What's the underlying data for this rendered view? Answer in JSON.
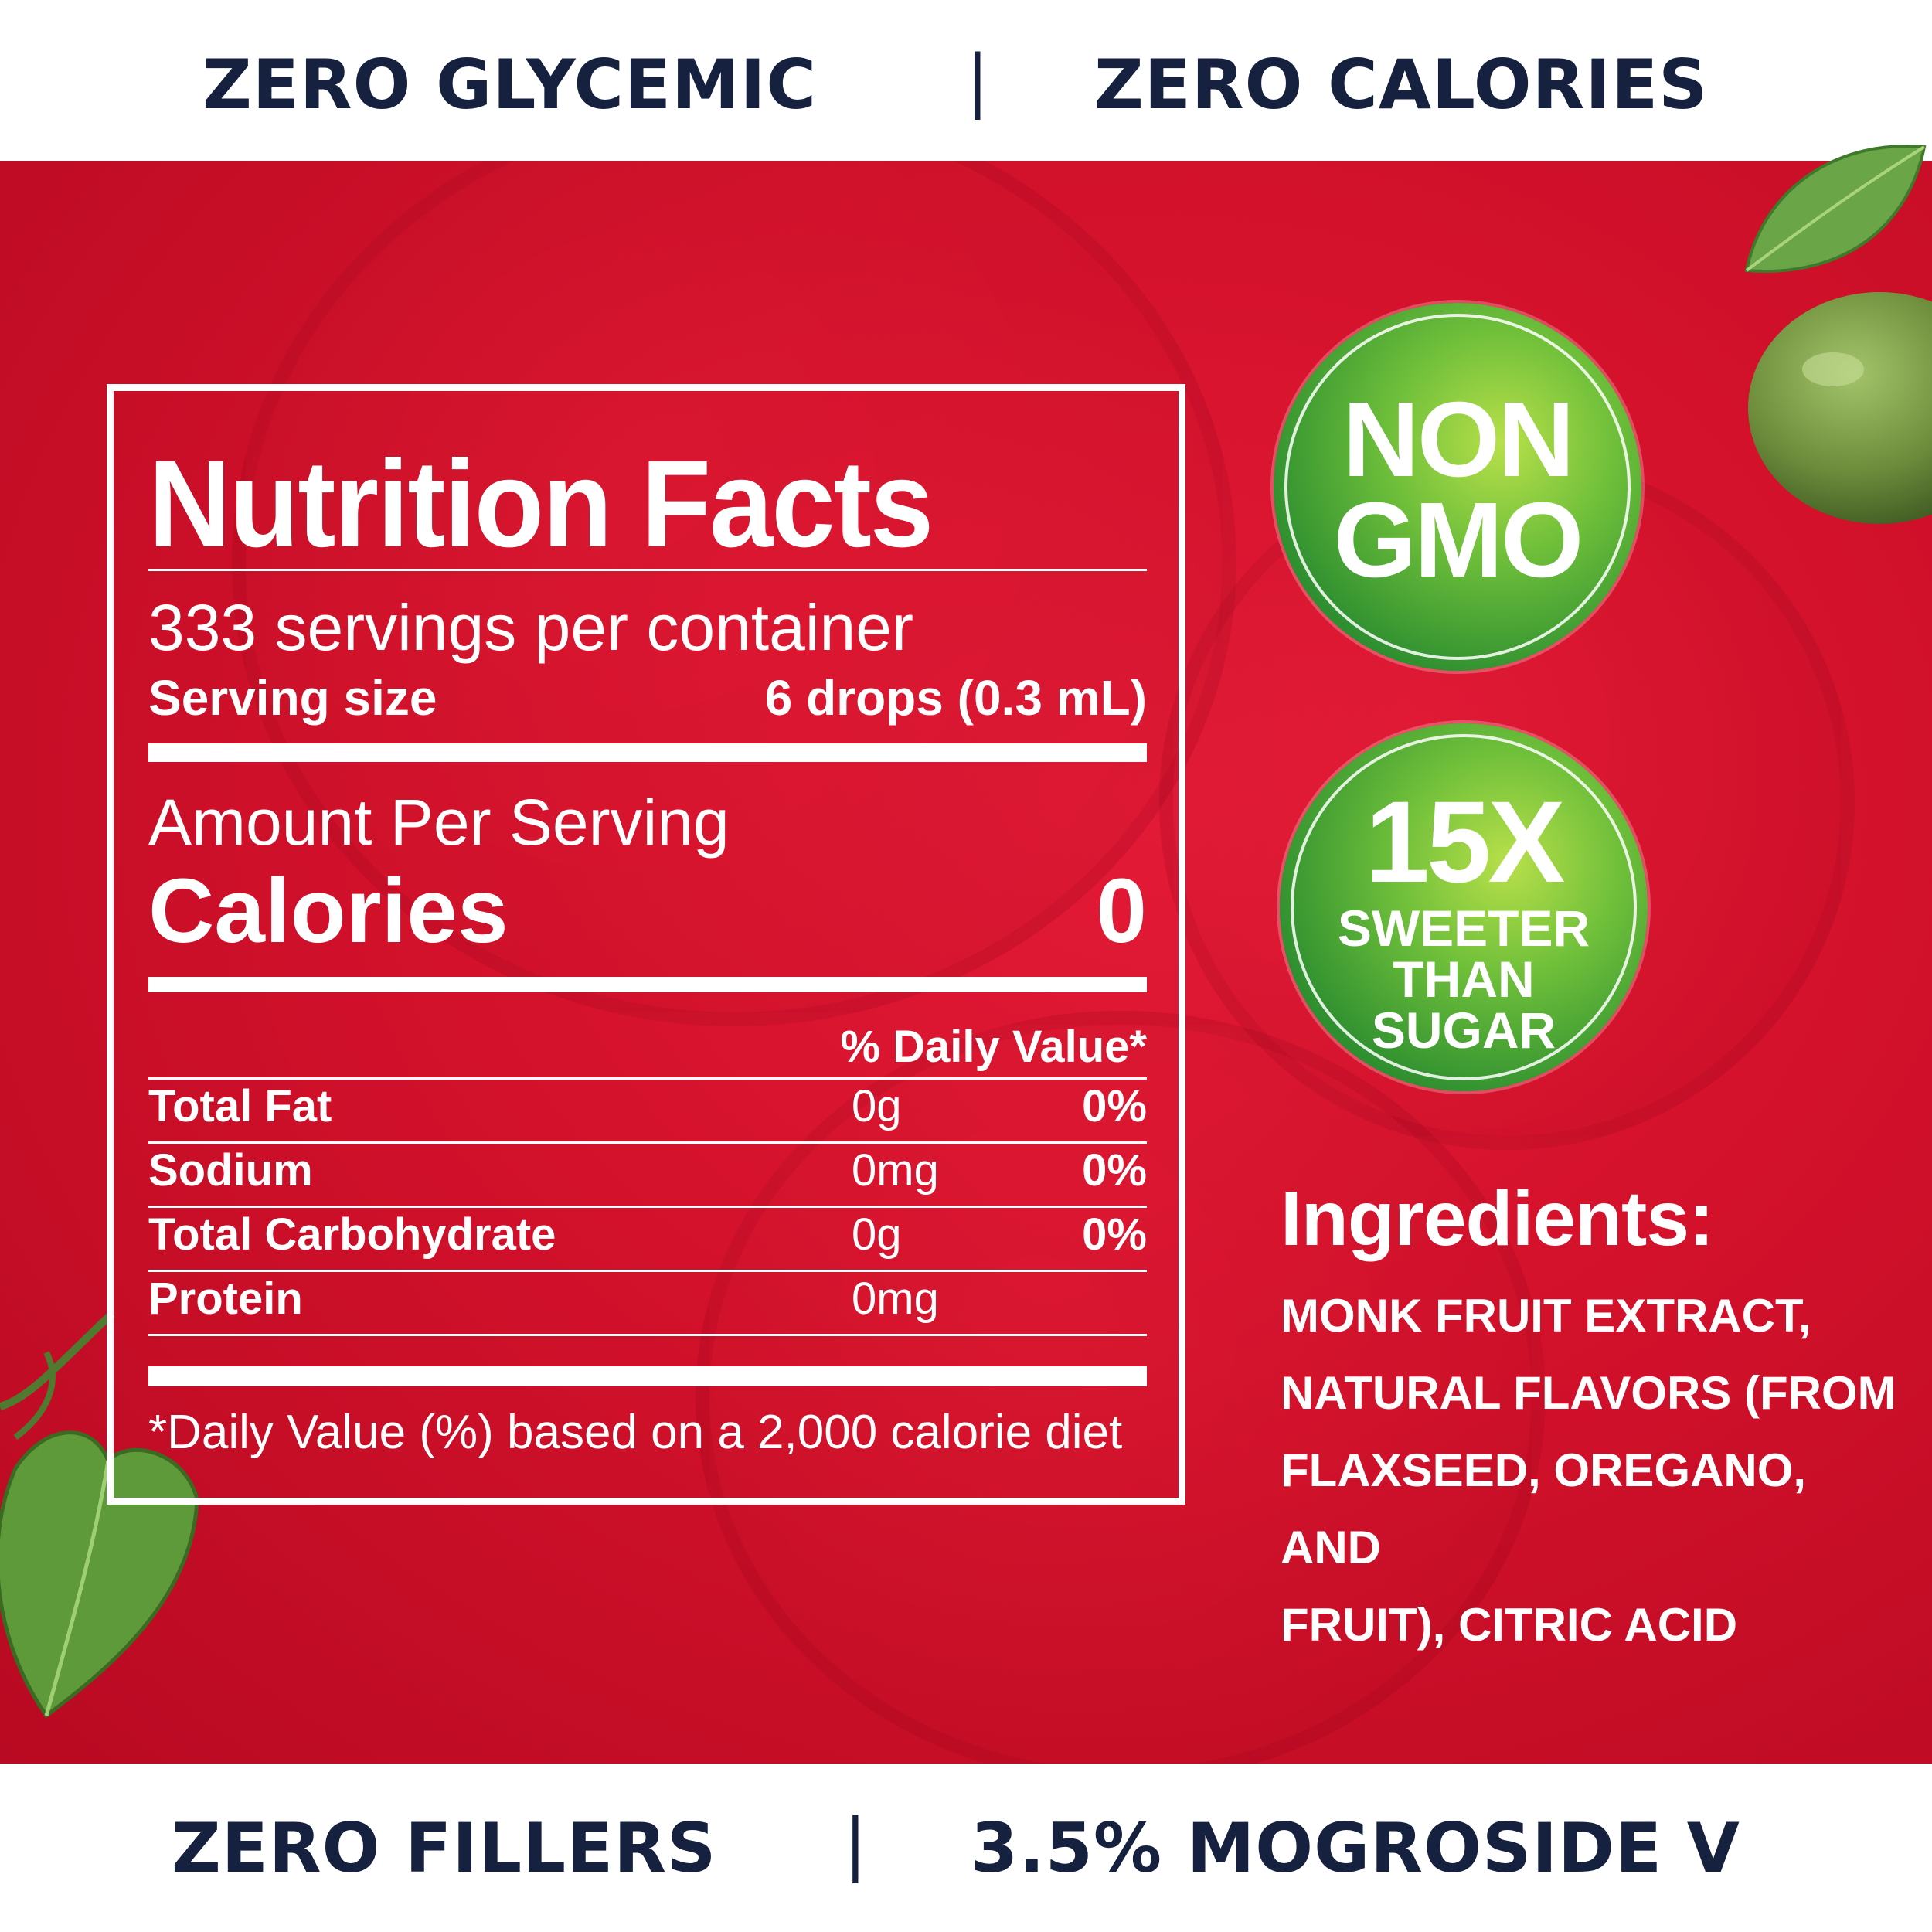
{
  "top_banner": {
    "left": "ZERO GLYCEMIC",
    "separator": "|",
    "right": "ZERO CALORIES"
  },
  "bottom_banner": {
    "left": "ZERO FILLERS",
    "separator": "|",
    "right": "3.5% MOGROSIDE V"
  },
  "nutrition": {
    "title": "Nutrition Facts",
    "servings": "333 servings per container",
    "serving_size_label": "Serving size",
    "serving_size_value": "6 drops (0.3 mL)",
    "amount_per_serving": "Amount Per Serving",
    "calories_label": "Calories",
    "calories_value": "0",
    "dv_header": "% Daily Value*",
    "rows": [
      {
        "name": "Total Fat",
        "amount": "0g",
        "dv": "0%"
      },
      {
        "name": "Sodium",
        "amount": "0mg",
        "dv": "0%"
      },
      {
        "name": "Total Carbohydrate",
        "amount": "0g",
        "dv": "0%"
      },
      {
        "name": "Protein",
        "amount": "0mg",
        "dv": ""
      }
    ],
    "footnote": "*Daily Value (%) based on a 2,000 calorie diet"
  },
  "badges": {
    "gmo": {
      "line1": "NON",
      "line2": "GMO"
    },
    "sweet": {
      "big": "15X",
      "line1": "SWEETER",
      "line2": "THAN",
      "line3": "SUGAR"
    }
  },
  "ingredients": {
    "title": "Ingredients:",
    "lines": [
      "MONK FRUIT EXTRACT,",
      "NATURAL FLAVORS (FROM",
      "FLAXSEED, OREGANO, AND",
      "FRUIT), CITRIC ACID"
    ]
  },
  "colors": {
    "navy_text": "#16213f",
    "panel_red": "#d3112b",
    "badge_green": "#2e8f30",
    "leaf_green": "#5f9a3a"
  }
}
